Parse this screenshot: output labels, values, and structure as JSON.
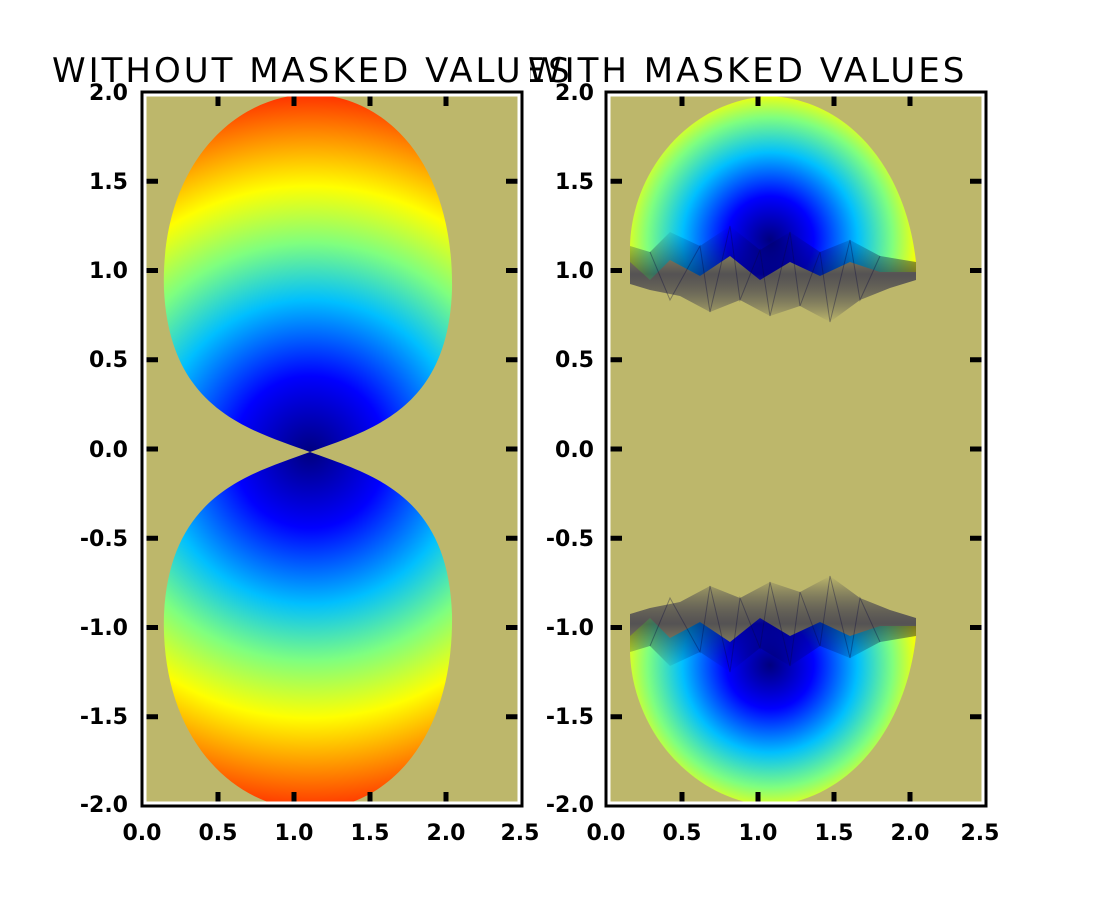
{
  "chart_data": [
    {
      "type": "heatmap",
      "title": "WITHOUT MASKED VALUES",
      "xlabel": "",
      "ylabel": "",
      "xlim": [
        0.0,
        2.5
      ],
      "ylim": [
        -2.0,
        2.0
      ],
      "xticks": [
        "0.0",
        "0.5",
        "1.0",
        "1.5",
        "2.0",
        "2.5"
      ],
      "yticks": [
        "2.0",
        "1.5",
        "1.0",
        "0.5",
        "0.0",
        "-0.5",
        "-1.0",
        "-1.5",
        "-2.0"
      ],
      "background": "#bdb76b",
      "colormap": "jet",
      "masked": false,
      "data_extent": {
        "x": [
          0.15,
          2.0
        ],
        "y": [
          -1.95,
          1.95
        ]
      }
    },
    {
      "type": "heatmap",
      "title": "WITH MASKED VALUES",
      "xlabel": "",
      "ylabel": "",
      "xlim": [
        0.0,
        2.5
      ],
      "ylim": [
        -2.0,
        2.0
      ],
      "xticks": [
        "0.0",
        "0.5",
        "1.0",
        "1.5",
        "2.0",
        "2.5"
      ],
      "yticks": [
        "2.0",
        "1.5",
        "1.0",
        "0.5",
        "0.0",
        "-0.5",
        "-1.0",
        "-1.5",
        "-2.0"
      ],
      "background": "#bdb76b",
      "colormap": "jet",
      "masked": true,
      "masked_y_range": [
        -0.9,
        0.9
      ],
      "data_extent": {
        "x": [
          0.15,
          2.0
        ],
        "y": [
          -1.95,
          1.95
        ]
      }
    }
  ]
}
